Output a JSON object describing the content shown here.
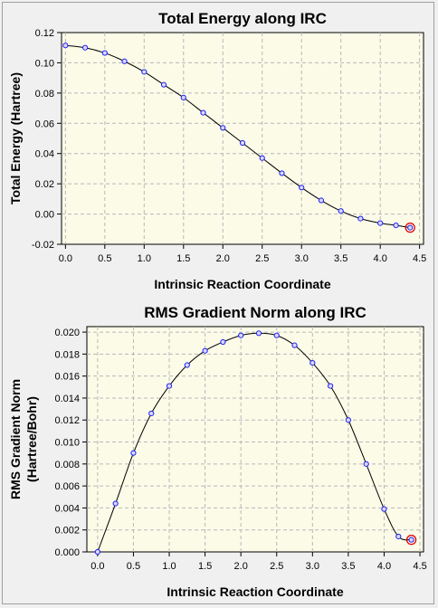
{
  "chart_data": [
    {
      "type": "line",
      "title": "Total Energy along IRC",
      "xlabel": "Intrinsic Reaction Coordinate",
      "ylabel": "Total Energy (Hartree)",
      "xlim": [
        -0.05,
        4.55
      ],
      "ylim": [
        -0.02,
        0.12
      ],
      "xticks": [
        "0.0",
        "0.5",
        "1.0",
        "1.5",
        "2.0",
        "2.5",
        "3.0",
        "3.5",
        "4.0",
        "4.5"
      ],
      "yticks": [
        "-0.02",
        "0.00",
        "0.02",
        "0.04",
        "0.06",
        "0.08",
        "0.10",
        "0.12"
      ],
      "grid": true,
      "x": [
        0.0,
        0.25,
        0.5,
        0.75,
        1.0,
        1.25,
        1.5,
        1.75,
        2.0,
        2.25,
        2.5,
        2.75,
        3.0,
        3.25,
        3.5,
        3.75,
        4.0,
        4.2,
        4.38
      ],
      "values": [
        0.1115,
        0.11,
        0.1065,
        0.101,
        0.094,
        0.0855,
        0.077,
        0.067,
        0.057,
        0.047,
        0.037,
        0.027,
        0.0175,
        0.009,
        0.002,
        -0.003,
        -0.006,
        -0.0075,
        -0.009
      ],
      "current_point_index": 18
    },
    {
      "type": "line",
      "title": "RMS Gradient Norm along IRC",
      "xlabel": "Intrinsic Reaction Coordinate",
      "ylabel": [
        "RMS Gradient Norm",
        "(Hartree/Bohr)"
      ],
      "xlim": [
        -0.15,
        4.55
      ],
      "ylim": [
        0.0,
        0.0205
      ],
      "xticks": [
        "0.0",
        "0.5",
        "1.0",
        "1.5",
        "2.0",
        "2.5",
        "3.0",
        "3.5",
        "4.0",
        "4.5"
      ],
      "yticks": [
        "0.000",
        "0.002",
        "0.004",
        "0.006",
        "0.008",
        "0.010",
        "0.012",
        "0.014",
        "0.016",
        "0.018",
        "0.020"
      ],
      "grid": true,
      "x": [
        0.0,
        0.25,
        0.5,
        0.75,
        1.0,
        1.25,
        1.5,
        1.75,
        2.0,
        2.25,
        2.5,
        2.75,
        3.0,
        3.25,
        3.5,
        3.75,
        4.0,
        4.2,
        4.38
      ],
      "values": [
        0.0,
        0.0044,
        0.009,
        0.0126,
        0.0151,
        0.017,
        0.0183,
        0.0191,
        0.0197,
        0.0199,
        0.0197,
        0.0188,
        0.0172,
        0.0151,
        0.012,
        0.008,
        0.0039,
        0.0014,
        0.0011
      ],
      "current_point_index": 18
    }
  ]
}
